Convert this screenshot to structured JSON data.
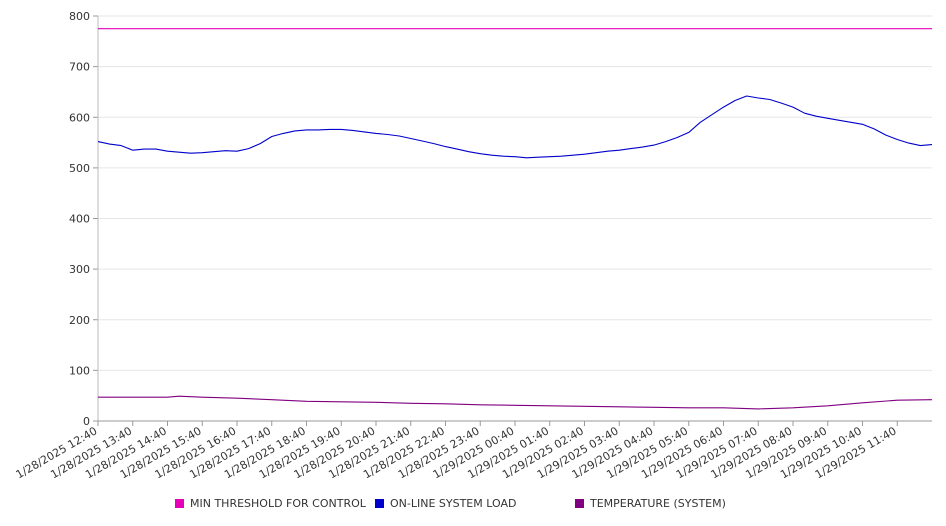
{
  "chart_data": {
    "type": "line",
    "title": "",
    "xlabel": "",
    "ylabel": "",
    "ylim": [
      0,
      800
    ],
    "y_ticks": [
      0,
      100,
      200,
      300,
      400,
      500,
      600,
      700,
      800
    ],
    "x_tick_labels": [
      "1/28/2025 12:40",
      "1/28/2025 13:40",
      "1/28/2025 14:40",
      "1/28/2025 15:40",
      "1/28/2025 16:40",
      "1/28/2025 17:40",
      "1/28/2025 18:40",
      "1/28/2025 19:40",
      "1/28/2025 20:40",
      "1/28/2025 21:40",
      "1/28/2025 22:40",
      "1/28/2025 23:40",
      "1/29/2025 00:40",
      "1/29/2025 01:40",
      "1/29/2025 02:40",
      "1/29/2025 03:40",
      "1/29/2025 04:40",
      "1/29/2025 05:40",
      "1/29/2025 06:40",
      "1/29/2025 07:40",
      "1/29/2025 08:40",
      "1/29/2025 09:40",
      "1/29/2025 10:40",
      "1/29/2025 11:40"
    ],
    "x_range": [
      "1/28/2025 12:40",
      "1/29/2025 12:40"
    ],
    "grid": "horizontal",
    "legend_position": "bottom",
    "series": [
      {
        "name": "MIN THRESHOLD FOR CONTROL",
        "color": "#e600b8",
        "points": [
          [
            "1/28/2025 12:40",
            775
          ],
          [
            "1/29/2025 12:40",
            775
          ]
        ]
      },
      {
        "name": "ON-LINE SYSTEM LOAD",
        "color": "#0000cc",
        "points": [
          [
            "1/28/2025 12:40",
            552
          ],
          [
            "1/28/2025 13:00",
            547
          ],
          [
            "1/28/2025 13:20",
            544
          ],
          [
            "1/28/2025 13:40",
            535
          ],
          [
            "1/28/2025 14:00",
            537
          ],
          [
            "1/28/2025 14:20",
            537
          ],
          [
            "1/28/2025 14:40",
            533
          ],
          [
            "1/28/2025 15:00",
            531
          ],
          [
            "1/28/2025 15:20",
            529
          ],
          [
            "1/28/2025 15:40",
            530
          ],
          [
            "1/28/2025 16:00",
            532
          ],
          [
            "1/28/2025 16:20",
            534
          ],
          [
            "1/28/2025 16:40",
            533
          ],
          [
            "1/28/2025 17:00",
            538
          ],
          [
            "1/28/2025 17:20",
            548
          ],
          [
            "1/28/2025 17:40",
            562
          ],
          [
            "1/28/2025 18:00",
            568
          ],
          [
            "1/28/2025 18:20",
            573
          ],
          [
            "1/28/2025 18:40",
            575
          ],
          [
            "1/28/2025 19:00",
            575
          ],
          [
            "1/28/2025 19:20",
            576
          ],
          [
            "1/28/2025 19:40",
            576
          ],
          [
            "1/28/2025 20:00",
            574
          ],
          [
            "1/28/2025 20:20",
            571
          ],
          [
            "1/28/2025 20:40",
            568
          ],
          [
            "1/28/2025 21:00",
            566
          ],
          [
            "1/28/2025 21:20",
            563
          ],
          [
            "1/28/2025 21:40",
            558
          ],
          [
            "1/28/2025 22:00",
            553
          ],
          [
            "1/28/2025 22:20",
            548
          ],
          [
            "1/28/2025 22:40",
            542
          ],
          [
            "1/28/2025 23:00",
            537
          ],
          [
            "1/28/2025 23:20",
            532
          ],
          [
            "1/28/2025 23:40",
            528
          ],
          [
            "1/29/2025 00:00",
            525
          ],
          [
            "1/29/2025 00:20",
            523
          ],
          [
            "1/29/2025 00:40",
            522
          ],
          [
            "1/29/2025 01:00",
            520
          ],
          [
            "1/29/2025 01:20",
            521
          ],
          [
            "1/29/2025 01:40",
            522
          ],
          [
            "1/29/2025 02:00",
            523
          ],
          [
            "1/29/2025 02:20",
            525
          ],
          [
            "1/29/2025 02:40",
            527
          ],
          [
            "1/29/2025 03:00",
            530
          ],
          [
            "1/29/2025 03:20",
            533
          ],
          [
            "1/29/2025 03:40",
            535
          ],
          [
            "1/29/2025 04:00",
            538
          ],
          [
            "1/29/2025 04:20",
            541
          ],
          [
            "1/29/2025 04:40",
            545
          ],
          [
            "1/29/2025 05:00",
            552
          ],
          [
            "1/29/2025 05:20",
            560
          ],
          [
            "1/29/2025 05:40",
            570
          ],
          [
            "1/29/2025 06:00",
            590
          ],
          [
            "1/29/2025 06:20",
            605
          ],
          [
            "1/29/2025 06:40",
            620
          ],
          [
            "1/29/2025 07:00",
            633
          ],
          [
            "1/29/2025 07:20",
            642
          ],
          [
            "1/29/2025 07:40",
            638
          ],
          [
            "1/29/2025 08:00",
            635
          ],
          [
            "1/29/2025 08:20",
            628
          ],
          [
            "1/29/2025 08:40",
            620
          ],
          [
            "1/29/2025 09:00",
            608
          ],
          [
            "1/29/2025 09:20",
            602
          ],
          [
            "1/29/2025 09:40",
            598
          ],
          [
            "1/29/2025 10:00",
            594
          ],
          [
            "1/29/2025 10:20",
            590
          ],
          [
            "1/29/2025 10:40",
            586
          ],
          [
            "1/29/2025 11:00",
            577
          ],
          [
            "1/29/2025 11:20",
            565
          ],
          [
            "1/29/2025 11:40",
            556
          ],
          [
            "1/29/2025 12:00",
            549
          ],
          [
            "1/29/2025 12:20",
            544
          ],
          [
            "1/29/2025 12:40",
            546
          ]
        ]
      },
      {
        "name": "TEMPERATURE (SYSTEM)",
        "color": "#800080",
        "points": [
          [
            "1/28/2025 12:40",
            47
          ],
          [
            "1/28/2025 14:40",
            47
          ],
          [
            "1/28/2025 15:00",
            49
          ],
          [
            "1/28/2025 15:40",
            47
          ],
          [
            "1/28/2025 16:40",
            45
          ],
          [
            "1/28/2025 17:40",
            42
          ],
          [
            "1/28/2025 18:40",
            39
          ],
          [
            "1/28/2025 19:40",
            38
          ],
          [
            "1/28/2025 20:40",
            37
          ],
          [
            "1/28/2025 21:40",
            35
          ],
          [
            "1/28/2025 22:40",
            34
          ],
          [
            "1/28/2025 23:40",
            32
          ],
          [
            "1/29/2025 00:40",
            31
          ],
          [
            "1/29/2025 01:40",
            30
          ],
          [
            "1/29/2025 02:40",
            29
          ],
          [
            "1/29/2025 03:40",
            28
          ],
          [
            "1/29/2025 04:40",
            27
          ],
          [
            "1/29/2025 05:40",
            26
          ],
          [
            "1/29/2025 06:40",
            26
          ],
          [
            "1/29/2025 07:40",
            24
          ],
          [
            "1/29/2025 08:40",
            26
          ],
          [
            "1/29/2025 09:40",
            30
          ],
          [
            "1/29/2025 10:40",
            36
          ],
          [
            "1/29/2025 11:40",
            41
          ],
          [
            "1/29/2025 12:40",
            42
          ]
        ]
      }
    ]
  }
}
